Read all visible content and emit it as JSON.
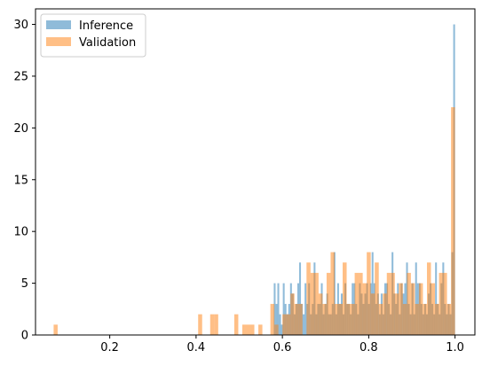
{
  "chart_data": {
    "type": "histogram",
    "title": "",
    "xlabel": "",
    "ylabel": "",
    "xlim": [
      0.028,
      1.046
    ],
    "ylim": [
      0,
      31.5
    ],
    "xticks": [
      0.2,
      0.4,
      0.6,
      0.8,
      1.0
    ],
    "xtick_labels": [
      "0.2",
      "0.4",
      "0.6",
      "0.8",
      "1.0"
    ],
    "yticks": [
      0,
      5,
      10,
      15,
      20,
      25,
      30
    ],
    "ytick_labels": [
      "0",
      "5",
      "10",
      "15",
      "20",
      "25",
      "30"
    ],
    "grid": false,
    "legend_position": "upper-left",
    "bins": 100,
    "series": [
      {
        "name": "Inference",
        "color": "#1f77b4",
        "alpha": 0.5,
        "bin_range": [
          0.58,
          1.0
        ],
        "counts": [
          5,
          3,
          5,
          2,
          1,
          5,
          3,
          2,
          3,
          5,
          4,
          2,
          3,
          5,
          7,
          3,
          2,
          5,
          3,
          5,
          2,
          3,
          7,
          2,
          3,
          3,
          5,
          2,
          3,
          4,
          2,
          2,
          3,
          8,
          2,
          5,
          3,
          4,
          2,
          5,
          3,
          3,
          2,
          5,
          5,
          3,
          2,
          5,
          4,
          3,
          4,
          5,
          3,
          5,
          8,
          5,
          3,
          4,
          2,
          4,
          2,
          5,
          5,
          3,
          2,
          8,
          4,
          3,
          5,
          2,
          5,
          4,
          5,
          7,
          3,
          2,
          5,
          2,
          7,
          5,
          5,
          3,
          2,
          3,
          2,
          4,
          5,
          3,
          2,
          7,
          3,
          2,
          5,
          7,
          3,
          2,
          3,
          2,
          8,
          30
        ]
      },
      {
        "name": "Validation",
        "color": "#ff7f0e",
        "alpha": 0.5,
        "bin_range": [
          0.07,
          1.0
        ],
        "counts": [
          1,
          0,
          0,
          0,
          0,
          0,
          0,
          0,
          0,
          0,
          0,
          0,
          0,
          0,
          0,
          0,
          0,
          0,
          0,
          0,
          0,
          0,
          0,
          0,
          0,
          0,
          0,
          0,
          0,
          0,
          0,
          0,
          0,
          0,
          0,
          0,
          2,
          0,
          0,
          2,
          2,
          0,
          0,
          0,
          0,
          2,
          0,
          1,
          1,
          1,
          0,
          1,
          0,
          0,
          3,
          1,
          0,
          2,
          2,
          4,
          3,
          3,
          0,
          7,
          6,
          6,
          4,
          3,
          6,
          8,
          3,
          3,
          7,
          3,
          3,
          6,
          6,
          5,
          8,
          4,
          7,
          3,
          4,
          6,
          6,
          4,
          5,
          3,
          6,
          5,
          3,
          5,
          3,
          7,
          5,
          3,
          6,
          6,
          3,
          22
        ]
      }
    ]
  }
}
